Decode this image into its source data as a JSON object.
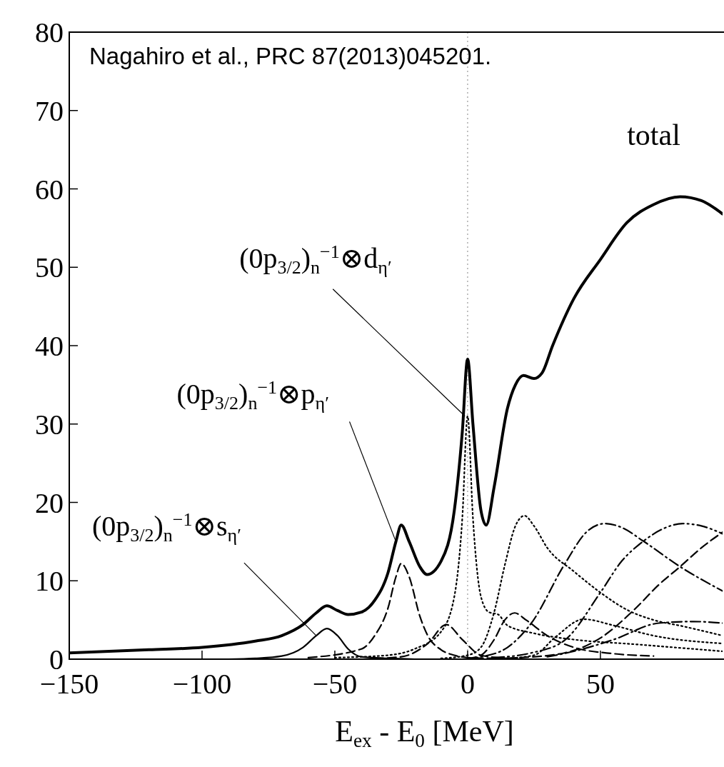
{
  "chart_data": {
    "type": "line",
    "xlabel": "E$_{ex}$ - E$_{0}$ [MeV]",
    "xlim": [
      -150,
      96
    ],
    "ylim": [
      0,
      80
    ],
    "xticks": [
      {
        "value": -150,
        "label": "−150"
      },
      {
        "value": -100,
        "label": "−100"
      },
      {
        "value": -50,
        "label": "−50"
      },
      0,
      50
    ],
    "yticks": [
      0,
      10,
      20,
      30,
      40,
      50,
      60,
      70,
      80
    ],
    "grid": false,
    "ref_lines": [
      {
        "axis": "x",
        "value": 0,
        "color": "#999999",
        "line_style": "dotted"
      }
    ],
    "annotations": [
      "Nagahiro et al., PRC 87(2013)045201.",
      {
        "text": "(0p$_{3/2}$)$_{n}$$^{−1}$⊗s$_{η′}$",
        "x": -57,
        "y": 3
      },
      {
        "text": "(0p$_{3/2}$)$_{n}$$^{−1}$⊗p$_{η′}$",
        "x": -27,
        "y": 15
      },
      {
        "text": "(0p$_{3/2}$)$_{n}$$^{−1}$⊗d$_{η′}$",
        "x": -1,
        "y": 31
      }
    ],
    "series": [
      {
        "name": "total",
        "color": "#000000",
        "line_style": "solid",
        "x": [
          -150,
          -120,
          -100,
          -80,
          -70,
          -62,
          -57,
          -53,
          -49,
          -45,
          -40,
          -35,
          -30,
          -27,
          -25,
          -22,
          -18,
          -15.3,
          -10,
          -5,
          -2,
          0,
          2,
          5,
          7,
          10,
          15,
          18,
          21,
          25,
          28,
          32,
          40,
          50,
          60,
          70,
          80,
          88,
          96
        ],
        "values": [
          0.8,
          1.2,
          1.5,
          2.3,
          3.0,
          4.4,
          5.9,
          6.8,
          6.2,
          5.7,
          6.0,
          7.5,
          11,
          15,
          17.1,
          15,
          11.8,
          10.8,
          12.5,
          19,
          29,
          38.3,
          30,
          19,
          17.1,
          22,
          32,
          35,
          36.2,
          35.8,
          36.5,
          40,
          46,
          51,
          55.7,
          58,
          59,
          58.5,
          56.8
        ]
      },
      {
        "color": "#000000",
        "line_style": "solid",
        "x": [
          -90,
          -80,
          -70,
          -62,
          -57,
          -53,
          -49,
          -45,
          -40,
          -30,
          -20
        ],
        "values": [
          0,
          0.1,
          0.4,
          1.5,
          3,
          3.9,
          3,
          1.3,
          0.3,
          0.1,
          0
        ]
      },
      {
        "color": "#000000",
        "line_style": "dashed",
        "x": [
          -60,
          -40,
          -35,
          -30,
          -27,
          -25,
          -22,
          -18,
          -15,
          -10,
          -5,
          0,
          10,
          20
        ],
        "values": [
          0.2,
          1.3,
          3,
          6.5,
          10.5,
          12.2,
          10.5,
          5.5,
          3,
          1.2,
          0.5,
          0.2,
          0.1,
          0
        ]
      },
      {
        "color": "#000000",
        "line_style": "dotted",
        "x": [
          -50,
          -30,
          -20,
          -10,
          -5,
          -2,
          0,
          2,
          5,
          8,
          11.5,
          15,
          25,
          40,
          63,
          96
        ],
        "values": [
          0.2,
          0.5,
          1.3,
          3.5,
          8,
          18,
          31,
          18,
          8,
          6,
          5.7,
          4.3,
          3.3,
          2.5,
          1.9,
          1.0
        ]
      },
      {
        "color": "#000000",
        "line_style": "dotted",
        "x": [
          -10,
          0,
          5,
          10,
          14,
          18,
          21.4,
          25,
          30,
          40,
          50,
          60,
          70,
          81,
          96
        ],
        "values": [
          0.1,
          0.5,
          1.5,
          6,
          12,
          17,
          18.3,
          17,
          14.2,
          11.2,
          8.5,
          6.3,
          5,
          4.2,
          3.0
        ]
      },
      {
        "color": "#000000",
        "line_style": "dashdot",
        "x": [
          0,
          5,
          15,
          24,
          36.5,
          45,
          51.7,
          58,
          66,
          80,
          96
        ],
        "values": [
          0.1,
          0.3,
          1.5,
          4.6,
          12.1,
          16.3,
          17.3,
          16.8,
          15.1,
          11.8,
          8.7
        ]
      },
      {
        "color": "#000000",
        "line_style": "dashdotdot",
        "x": [
          10,
          24,
          36.5,
          50,
          58,
          66,
          74,
          81,
          88,
          96
        ],
        "values": [
          0.2,
          0.8,
          2.4,
          8.5,
          12.5,
          15,
          16.7,
          17.3,
          17,
          16
        ]
      },
      {
        "color": "#000000",
        "line_style": "dashed",
        "x": [
          10,
          20,
          36.5,
          50,
          63,
          72,
          80,
          88,
          96
        ],
        "values": [
          0.1,
          0.2,
          0.8,
          2.7,
          6.4,
          9.5,
          11.8,
          14.2,
          16.2
        ]
      },
      {
        "color": "#000000",
        "line_style": "dashed",
        "x": [
          -35,
          -25,
          -15,
          -8,
          -2,
          5,
          15
        ],
        "values": [
          0.1,
          0.3,
          2,
          4.4,
          2.5,
          0.5,
          0.1
        ]
      },
      {
        "color": "#000000",
        "line_style": "dashed",
        "x": [
          0,
          5,
          10,
          14,
          17.7,
          22,
          30,
          40,
          55,
          70
        ],
        "values": [
          0.1,
          0.5,
          2.5,
          5,
          5.9,
          5,
          3,
          1.5,
          0.7,
          0.4
        ]
      },
      {
        "color": "#000000",
        "line_style": "dotted",
        "x": [
          15,
          25,
          33,
          43.7,
          55,
          70,
          96
        ],
        "values": [
          0.1,
          0.5,
          2.8,
          5.1,
          4.3,
          3.0,
          2.0
        ]
      },
      {
        "color": "#000000",
        "line_style": "dashdot",
        "x": [
          30,
          40,
          55,
          72,
          85,
          96
        ],
        "values": [
          0.3,
          1.0,
          2.5,
          4.6,
          4.8,
          4.6
        ]
      }
    ]
  }
}
